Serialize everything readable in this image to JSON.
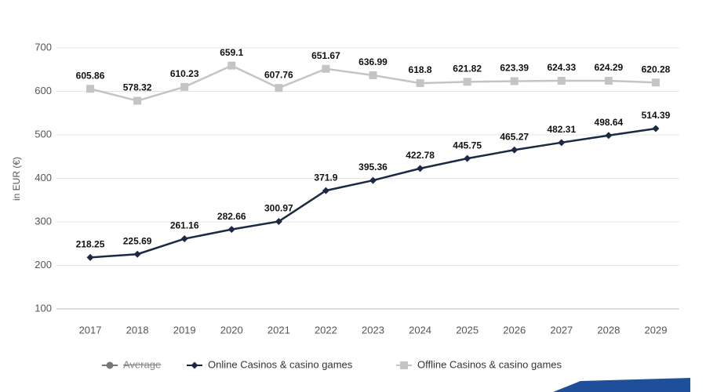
{
  "chart_data": {
    "type": "line",
    "y_label": "in EUR (€)",
    "categories": [
      "2017",
      "2018",
      "2019",
      "2020",
      "2021",
      "2022",
      "2023",
      "2024",
      "2025",
      "2026",
      "2027",
      "2028",
      "2029"
    ],
    "series": [
      {
        "name": "Average",
        "color": "#777777",
        "marker": "circle",
        "hidden": true,
        "values": [
          null,
          null,
          null,
          null,
          null,
          null,
          null,
          null,
          null,
          null,
          null,
          null,
          null
        ]
      },
      {
        "name": "Online Casinos & casino games",
        "color": "#1b2a44",
        "marker": "diamond",
        "values": [
          218.25,
          225.69,
          261.16,
          282.66,
          300.97,
          371.9,
          395.36,
          422.78,
          445.75,
          465.27,
          482.31,
          498.64,
          514.39
        ]
      },
      {
        "name": "Offline Casinos & casino games",
        "color": "#c4c4c4",
        "marker": "square",
        "values": [
          605.86,
          578.32,
          610.23,
          659.1,
          607.76,
          651.67,
          636.99,
          618.8,
          621.82,
          623.39,
          624.33,
          624.29,
          620.28
        ]
      }
    ],
    "ylim": [
      100,
      700
    ],
    "yticks": [
      100,
      200,
      300,
      400,
      500,
      600,
      700
    ],
    "grid": true
  }
}
